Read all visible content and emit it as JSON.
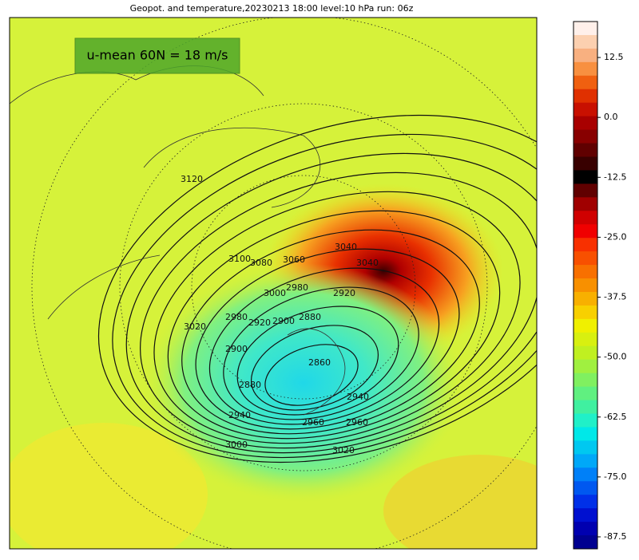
{
  "title": "Geopot. and temperature,20230213 18:00 level:10 hPa run: 06z",
  "annotation": "u-mean 60N = 18 m/s",
  "colorbar": {
    "lim": [
      -90,
      20
    ],
    "ticks": [
      12.5,
      {
        "value": 0,
        "label": "0.0"
      },
      -12.5,
      {
        "value": -25,
        "label": "-25.0"
      },
      -37.5,
      {
        "value": -50,
        "label": "-50.0"
      },
      -62.5,
      {
        "value": -75,
        "label": "-75.0"
      },
      -87.5
    ]
  },
  "contour_labels": [
    "3120",
    "3100",
    "3080",
    "3060",
    "3040",
    "3000",
    "2980",
    "2920",
    "3020",
    "2980",
    "2920",
    "2900",
    "2880",
    "2900",
    "2860",
    "2880",
    "2940",
    "2960",
    "3000",
    "3020",
    "2940",
    "2960",
    "3040"
  ]
}
